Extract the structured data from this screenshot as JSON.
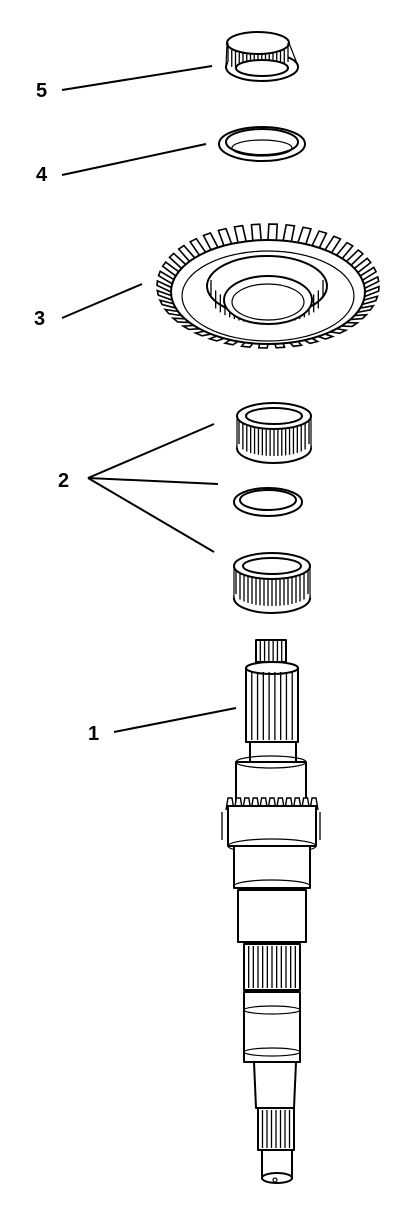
{
  "callouts": [
    {
      "id": "1",
      "label": "1"
    },
    {
      "id": "2",
      "label": "2"
    },
    {
      "id": "3",
      "label": "3"
    },
    {
      "id": "4",
      "label": "4"
    },
    {
      "id": "5",
      "label": "5"
    }
  ],
  "parts": {
    "part_1": "shaft-icon",
    "part_2": "needle-bearing-and-spacer-icon",
    "part_3": "helical-gear-icon",
    "part_4": "thrust-washer-icon",
    "part_5": "roller-bearing-icon"
  }
}
